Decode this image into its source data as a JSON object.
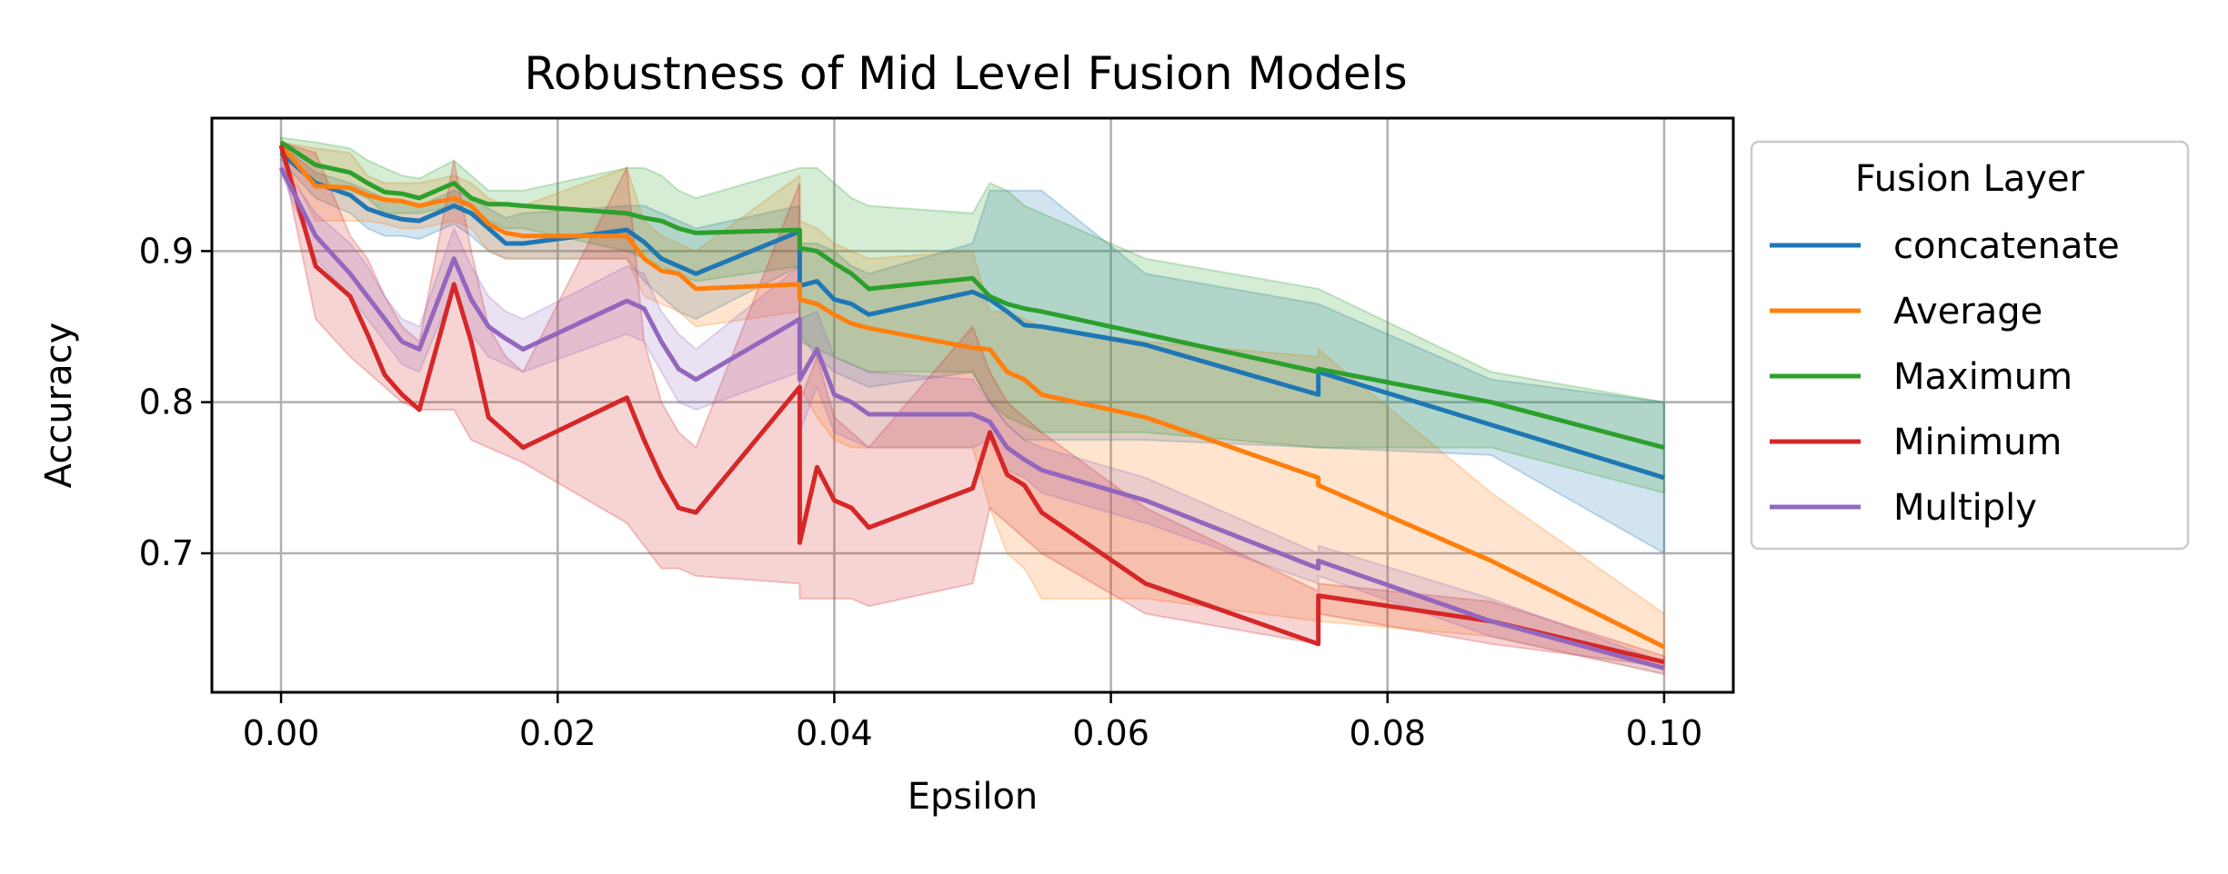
{
  "chart_data": {
    "type": "line",
    "title": "Robustness of Mid Level Fusion Models",
    "xlabel": "Epsilon",
    "ylabel": "Accuracy",
    "xlim": [
      -0.005,
      0.105
    ],
    "ylim": [
      0.608,
      0.988
    ],
    "xticks": [
      0.0,
      0.02,
      0.04,
      0.06,
      0.08,
      0.1
    ],
    "xtick_labels": [
      "0.00",
      "0.02",
      "0.04",
      "0.06",
      "0.08",
      "0.10"
    ],
    "yticks": [
      0.7,
      0.8,
      0.9
    ],
    "ytick_labels": [
      "0.7",
      "0.8",
      "0.9"
    ],
    "grid": true,
    "legend": {
      "title": "Fusion Layer",
      "placement": "outside-right"
    },
    "series": [
      {
        "name": "concatenate",
        "color": "#1f77b4",
        "x": [
          0,
          0.0025,
          0.005,
          0.00625,
          0.0075,
          0.00875,
          0.01,
          0.0125,
          0.01375,
          0.015,
          0.01625,
          0.0175,
          0.025,
          0.02625,
          0.0275,
          0.02875,
          0.03,
          0.0375,
          0.0375,
          0.03875,
          0.04,
          0.04125,
          0.0425,
          0.05,
          0.05125,
          0.0525,
          0.05375,
          0.055,
          0.0625,
          0.075,
          0.075,
          0.0875,
          0.1
        ],
        "y": [
          0.965,
          0.945,
          0.937,
          0.928,
          0.924,
          0.921,
          0.92,
          0.93,
          0.925,
          0.915,
          0.905,
          0.905,
          0.914,
          0.906,
          0.895,
          0.89,
          0.885,
          0.913,
          0.877,
          0.88,
          0.868,
          0.865,
          0.858,
          0.873,
          0.868,
          0.86,
          0.851,
          0.85,
          0.838,
          0.805,
          0.82,
          0.785,
          0.75
        ],
        "band_upper": [
          0.97,
          0.952,
          0.945,
          0.94,
          0.935,
          0.932,
          0.93,
          0.94,
          0.935,
          0.928,
          0.922,
          0.925,
          0.93,
          0.93,
          0.925,
          0.92,
          0.915,
          0.93,
          0.905,
          0.905,
          0.9,
          0.89,
          0.885,
          0.905,
          0.94,
          0.94,
          0.94,
          0.94,
          0.885,
          0.865,
          0.865,
          0.815,
          0.8
        ],
        "band_lower": [
          0.96,
          0.935,
          0.925,
          0.915,
          0.91,
          0.91,
          0.908,
          0.918,
          0.91,
          0.9,
          0.895,
          0.895,
          0.895,
          0.88,
          0.87,
          0.86,
          0.855,
          0.89,
          0.845,
          0.83,
          0.82,
          0.815,
          0.81,
          0.82,
          0.8,
          0.785,
          0.775,
          0.775,
          0.775,
          0.77,
          0.77,
          0.765,
          0.7
        ]
      },
      {
        "name": "Average",
        "color": "#ff7f0e",
        "x": [
          0,
          0.0025,
          0.005,
          0.00625,
          0.0075,
          0.00875,
          0.01,
          0.0125,
          0.01375,
          0.015,
          0.01625,
          0.0175,
          0.025,
          0.02625,
          0.0275,
          0.02875,
          0.03,
          0.0375,
          0.0375,
          0.03875,
          0.04,
          0.04125,
          0.0425,
          0.05,
          0.05125,
          0.0525,
          0.05375,
          0.055,
          0.0625,
          0.075,
          0.075,
          0.0875,
          0.1
        ],
        "y": [
          0.97,
          0.943,
          0.942,
          0.937,
          0.934,
          0.933,
          0.93,
          0.935,
          0.93,
          0.918,
          0.912,
          0.91,
          0.91,
          0.895,
          0.887,
          0.885,
          0.875,
          0.878,
          0.868,
          0.865,
          0.858,
          0.852,
          0.849,
          0.836,
          0.835,
          0.82,
          0.815,
          0.805,
          0.79,
          0.75,
          0.745,
          0.695,
          0.638
        ],
        "band_upper": [
          0.972,
          0.968,
          0.965,
          0.95,
          0.945,
          0.945,
          0.945,
          0.95,
          0.945,
          0.935,
          0.93,
          0.93,
          0.955,
          0.92,
          0.91,
          0.905,
          0.9,
          0.95,
          0.92,
          0.915,
          0.905,
          0.9,
          0.895,
          0.9,
          0.86,
          0.86,
          0.855,
          0.85,
          0.84,
          0.83,
          0.835,
          0.74,
          0.66
        ],
        "band_lower": [
          0.965,
          0.92,
          0.92,
          0.92,
          0.918,
          0.915,
          0.915,
          0.92,
          0.915,
          0.9,
          0.895,
          0.895,
          0.895,
          0.87,
          0.865,
          0.86,
          0.85,
          0.86,
          0.81,
          0.79,
          0.775,
          0.77,
          0.77,
          0.77,
          0.73,
          0.7,
          0.69,
          0.67,
          0.67,
          0.655,
          0.655,
          0.645,
          0.62
        ]
      },
      {
        "name": "Maximum",
        "color": "#2ca02c",
        "x": [
          0,
          0.0025,
          0.005,
          0.00625,
          0.0075,
          0.00875,
          0.01,
          0.0125,
          0.01375,
          0.015,
          0.01625,
          0.0175,
          0.025,
          0.02625,
          0.0275,
          0.02875,
          0.03,
          0.0375,
          0.0375,
          0.03875,
          0.04,
          0.04125,
          0.0425,
          0.05,
          0.05125,
          0.0525,
          0.05375,
          0.055,
          0.0625,
          0.075,
          0.075,
          0.0875,
          0.1
        ],
        "y": [
          0.972,
          0.957,
          0.952,
          0.945,
          0.939,
          0.938,
          0.935,
          0.945,
          0.935,
          0.931,
          0.931,
          0.93,
          0.925,
          0.922,
          0.92,
          0.915,
          0.912,
          0.914,
          0.902,
          0.9,
          0.892,
          0.885,
          0.875,
          0.882,
          0.87,
          0.865,
          0.862,
          0.86,
          0.845,
          0.82,
          0.822,
          0.8,
          0.77
        ],
        "band_upper": [
          0.975,
          0.972,
          0.968,
          0.96,
          0.955,
          0.95,
          0.948,
          0.96,
          0.95,
          0.94,
          0.94,
          0.94,
          0.955,
          0.955,
          0.95,
          0.94,
          0.935,
          0.955,
          0.955,
          0.955,
          0.945,
          0.935,
          0.93,
          0.925,
          0.945,
          0.94,
          0.93,
          0.925,
          0.895,
          0.875,
          0.875,
          0.82,
          0.8
        ],
        "band_lower": [
          0.968,
          0.945,
          0.94,
          0.935,
          0.925,
          0.925,
          0.925,
          0.93,
          0.925,
          0.92,
          0.915,
          0.915,
          0.9,
          0.895,
          0.89,
          0.885,
          0.88,
          0.89,
          0.84,
          0.835,
          0.83,
          0.825,
          0.82,
          0.82,
          0.8,
          0.79,
          0.785,
          0.78,
          0.78,
          0.77,
          0.77,
          0.77,
          0.74
        ]
      },
      {
        "name": "Minimum",
        "color": "#d62728",
        "x": [
          0,
          0.0025,
          0.005,
          0.00625,
          0.0075,
          0.00875,
          0.01,
          0.0125,
          0.01375,
          0.015,
          0.01625,
          0.0175,
          0.025,
          0.02625,
          0.0275,
          0.02875,
          0.03,
          0.0375,
          0.0375,
          0.03875,
          0.04,
          0.04125,
          0.0425,
          0.05,
          0.05125,
          0.0525,
          0.05375,
          0.055,
          0.0625,
          0.075,
          0.075,
          0.0875,
          0.1
        ],
        "y": [
          0.97,
          0.89,
          0.87,
          0.845,
          0.818,
          0.805,
          0.795,
          0.878,
          0.84,
          0.79,
          0.78,
          0.77,
          0.803,
          0.775,
          0.75,
          0.73,
          0.727,
          0.81,
          0.707,
          0.757,
          0.735,
          0.73,
          0.717,
          0.743,
          0.78,
          0.752,
          0.745,
          0.727,
          0.68,
          0.64,
          0.672,
          0.655,
          0.628
        ],
        "band_upper": [
          0.972,
          0.965,
          0.91,
          0.895,
          0.87,
          0.85,
          0.84,
          0.96,
          0.9,
          0.85,
          0.83,
          0.82,
          0.955,
          0.84,
          0.8,
          0.78,
          0.77,
          0.945,
          0.8,
          0.83,
          0.79,
          0.78,
          0.77,
          0.85,
          0.82,
          0.8,
          0.79,
          0.78,
          0.73,
          0.675,
          0.68,
          0.668,
          0.632
        ],
        "band_lower": [
          0.965,
          0.855,
          0.83,
          0.82,
          0.81,
          0.8,
          0.795,
          0.795,
          0.775,
          0.77,
          0.765,
          0.76,
          0.72,
          0.705,
          0.69,
          0.69,
          0.685,
          0.68,
          0.67,
          0.67,
          0.67,
          0.67,
          0.665,
          0.68,
          0.73,
          0.72,
          0.71,
          0.7,
          0.66,
          0.64,
          0.66,
          0.64,
          0.625
        ]
      },
      {
        "name": "Multiply",
        "color": "#9467bd",
        "x": [
          0,
          0.0025,
          0.005,
          0.00625,
          0.0075,
          0.00875,
          0.01,
          0.0125,
          0.01375,
          0.015,
          0.01625,
          0.0175,
          0.025,
          0.02625,
          0.0275,
          0.02875,
          0.03,
          0.0375,
          0.0375,
          0.03875,
          0.04,
          0.04125,
          0.0425,
          0.05,
          0.05125,
          0.0525,
          0.05375,
          0.055,
          0.0625,
          0.075,
          0.075,
          0.0875,
          0.1
        ],
        "y": [
          0.955,
          0.91,
          0.885,
          0.87,
          0.855,
          0.84,
          0.835,
          0.895,
          0.868,
          0.85,
          0.842,
          0.835,
          0.867,
          0.862,
          0.84,
          0.822,
          0.815,
          0.855,
          0.815,
          0.835,
          0.805,
          0.8,
          0.792,
          0.792,
          0.787,
          0.77,
          0.762,
          0.755,
          0.735,
          0.69,
          0.695,
          0.655,
          0.624
        ],
        "band_upper": [
          0.958,
          0.925,
          0.905,
          0.89,
          0.87,
          0.855,
          0.85,
          0.915,
          0.89,
          0.87,
          0.86,
          0.855,
          0.89,
          0.885,
          0.86,
          0.845,
          0.835,
          0.89,
          0.855,
          0.86,
          0.83,
          0.825,
          0.82,
          0.815,
          0.8,
          0.785,
          0.775,
          0.77,
          0.75,
          0.7,
          0.705,
          0.67,
          0.628
        ],
        "band_lower": [
          0.952,
          0.895,
          0.87,
          0.855,
          0.84,
          0.825,
          0.82,
          0.875,
          0.845,
          0.83,
          0.825,
          0.82,
          0.845,
          0.84,
          0.82,
          0.8,
          0.795,
          0.82,
          0.78,
          0.81,
          0.78,
          0.775,
          0.77,
          0.77,
          0.775,
          0.755,
          0.75,
          0.74,
          0.72,
          0.68,
          0.685,
          0.645,
          0.62
        ]
      }
    ]
  }
}
